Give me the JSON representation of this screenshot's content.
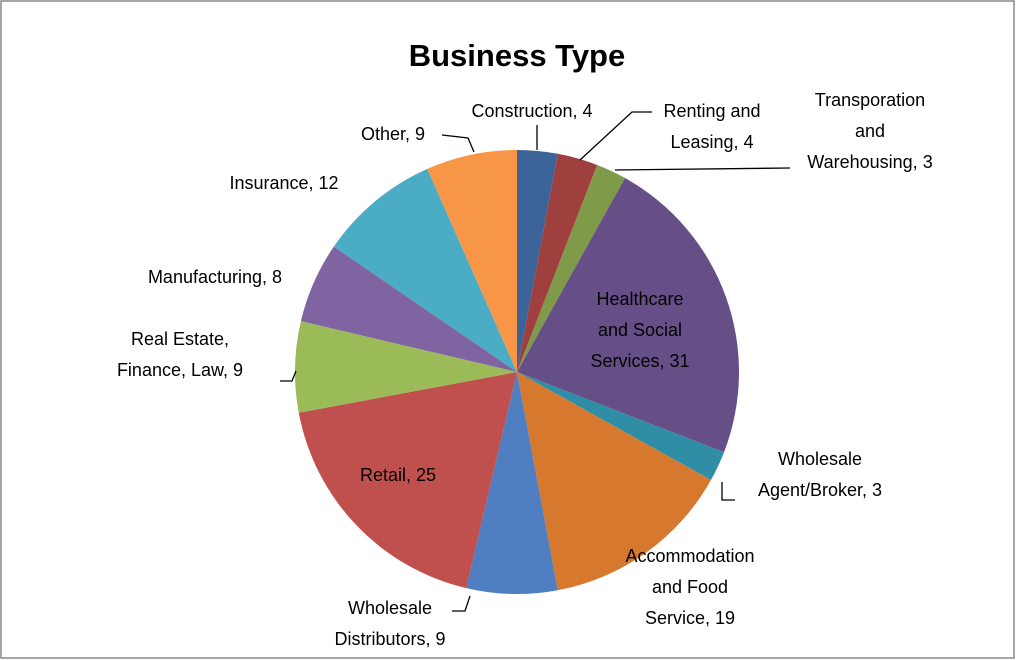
{
  "chart_data": {
    "type": "pie",
    "title": "Business Type",
    "categories": [
      "Construction",
      "Renting and Leasing",
      "Transporation and Warehousing",
      "Healthcare and Social Services",
      "Wholesale Agent/Broker",
      "Accommodation and Food Service",
      "Wholesale Distributors",
      "Retail",
      "Real Estate, Finance, Law",
      "Manufacturing",
      "Insurance",
      "Other"
    ],
    "values": [
      4,
      4,
      3,
      31,
      3,
      19,
      9,
      25,
      9,
      8,
      12,
      9
    ],
    "colors": [
      "#3c6499",
      "#a0403e",
      "#7f9a48",
      "#664f86",
      "#2f8da6",
      "#d6792f",
      "#4f7fc0",
      "#c0504d",
      "#9bbb59",
      "#8064a2",
      "#4bacc6",
      "#f79646"
    ]
  }
}
